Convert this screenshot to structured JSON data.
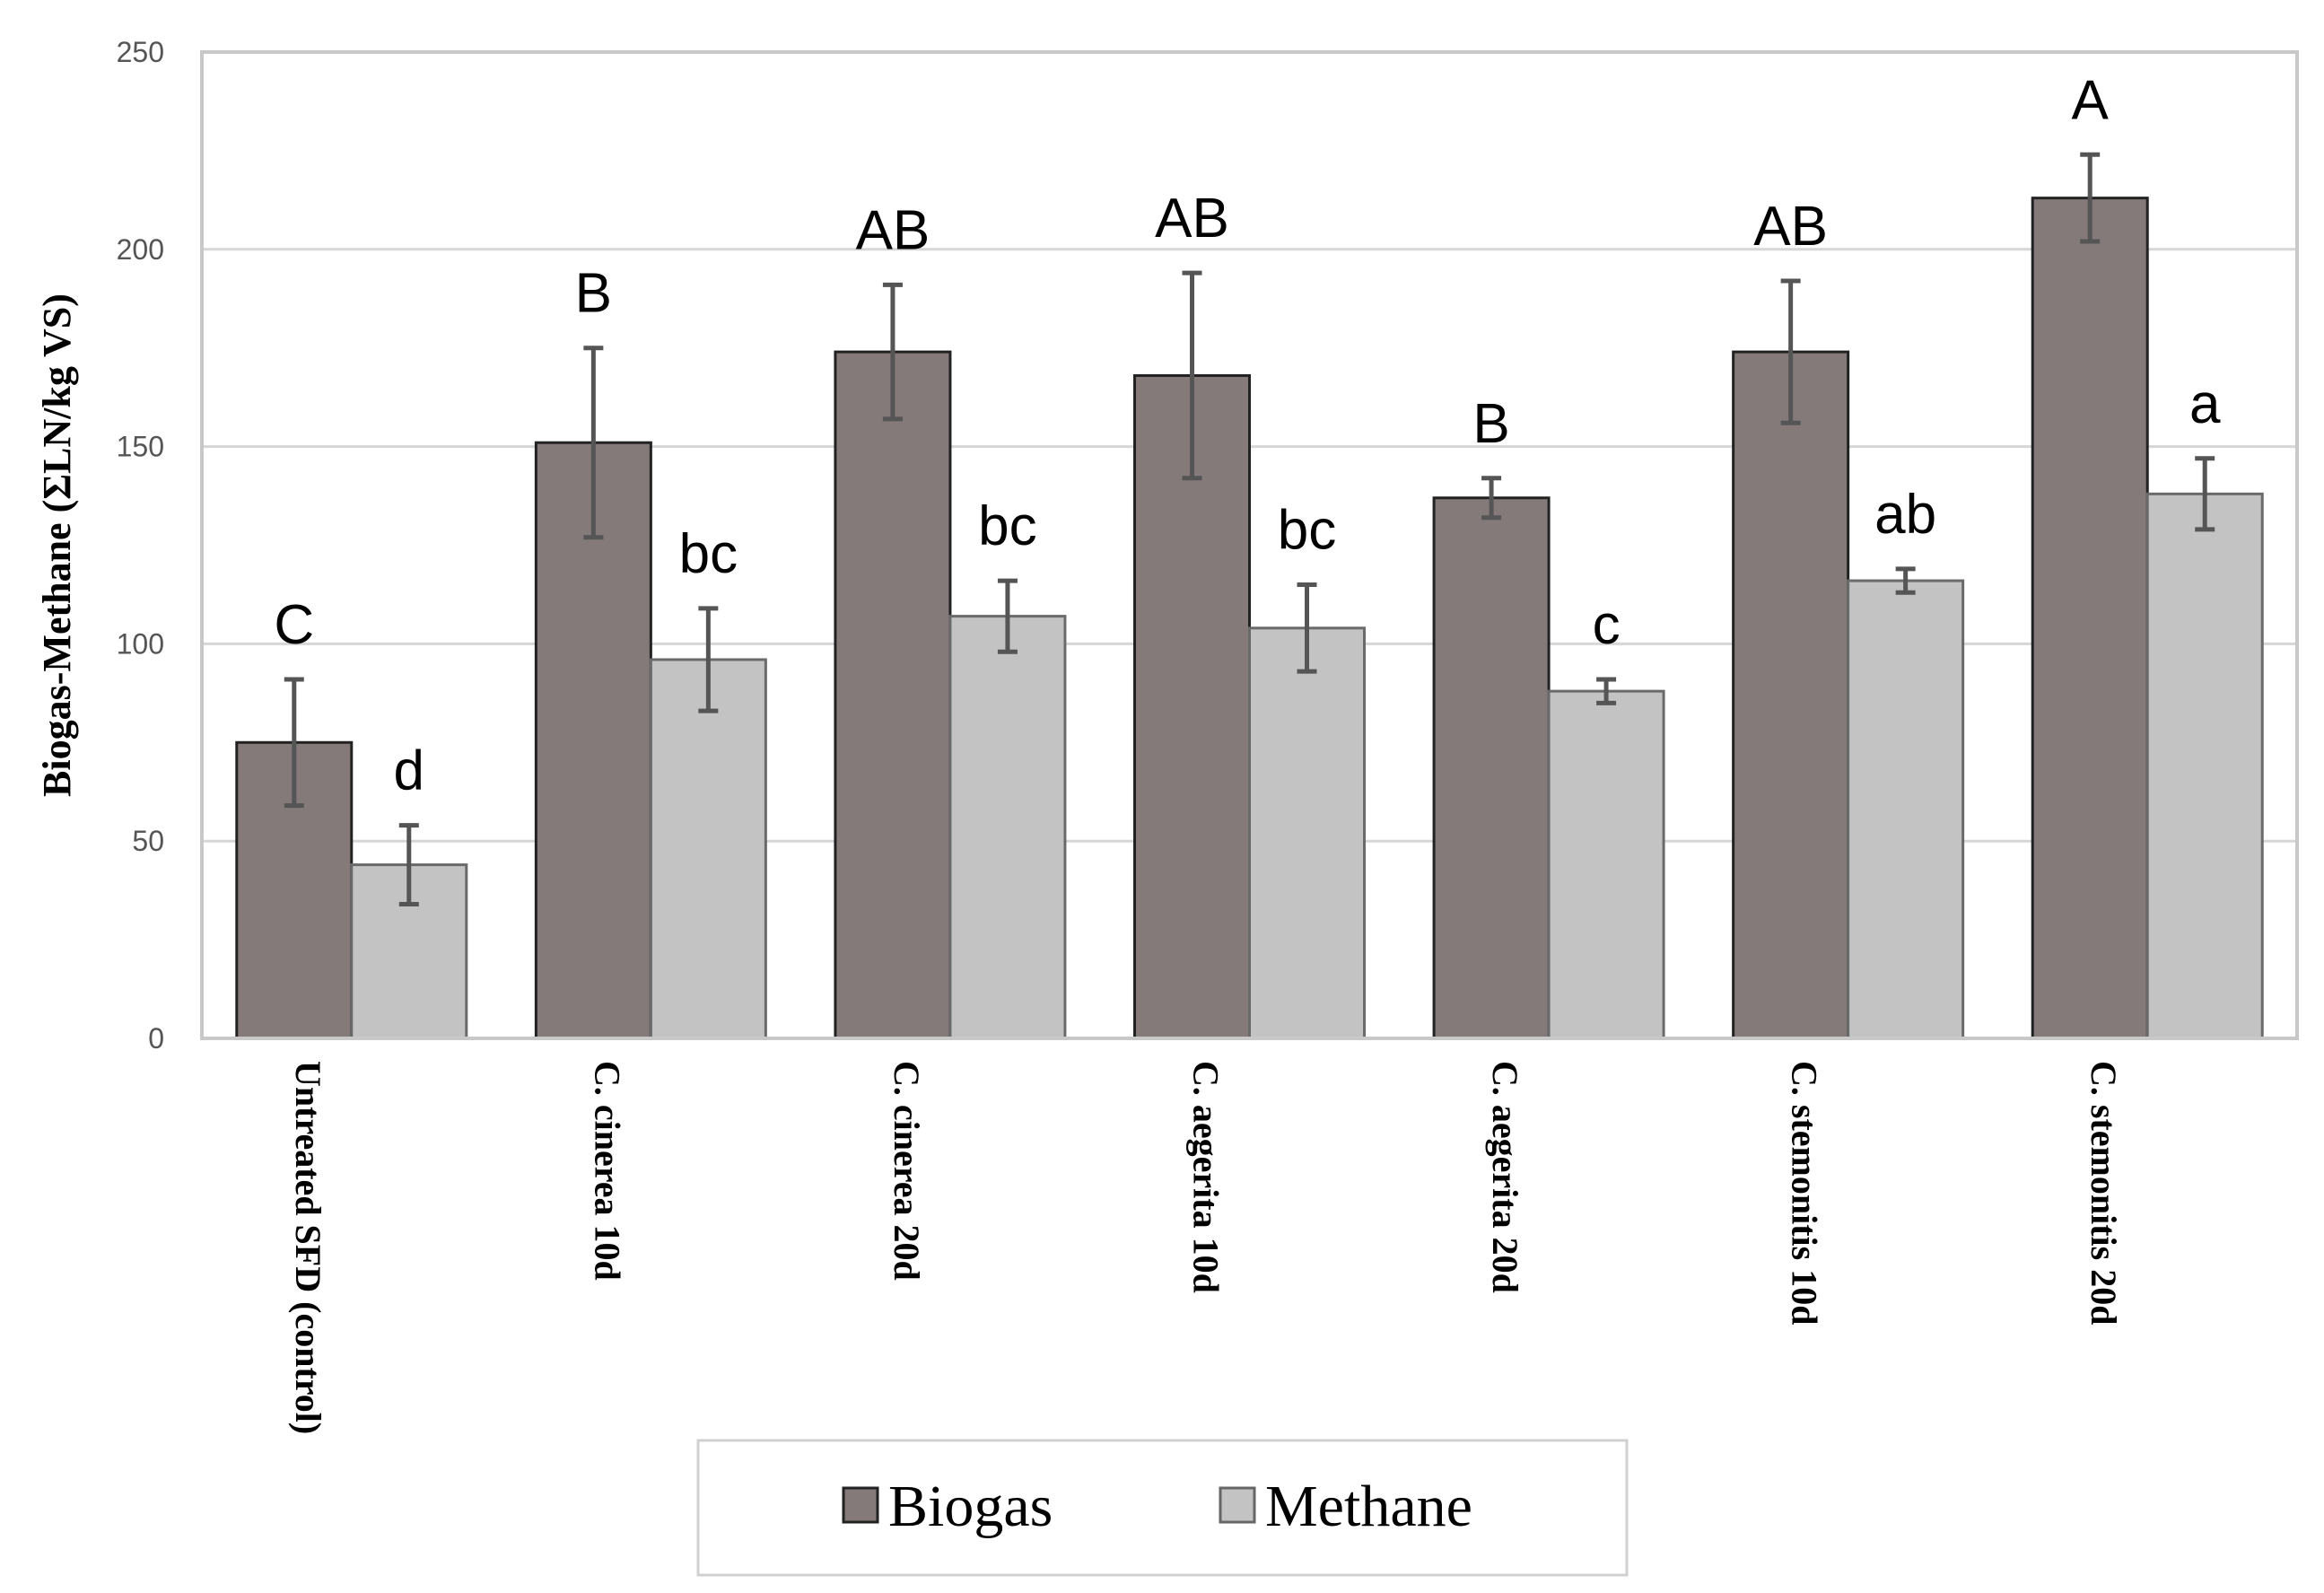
{
  "chart_data": {
    "type": "bar",
    "title": "",
    "xlabel": "",
    "ylabel": "Biogas-Methane (ΣLN/kg VS)",
    "ylim": [
      0,
      250
    ],
    "yticks": [
      0,
      50,
      100,
      150,
      200,
      250
    ],
    "grid": true,
    "legend_position": "bottom-center",
    "categories": [
      "Untreated SFD (control)",
      "C. cinerea 10d",
      "C. cinerea 20d",
      "C. aegerita 10d",
      "C. aegerita 20d",
      "C. stemonitis 10d",
      "C. stemonitis 20d"
    ],
    "series": [
      {
        "name": "Biogas",
        "color": "#847a7a",
        "values": [
          75,
          151,
          174,
          168,
          137,
          174,
          213
        ],
        "errors": [
          16,
          24,
          17,
          26,
          5,
          18,
          11
        ],
        "significance": [
          "C",
          "B",
          "AB",
          "AB",
          "B",
          "AB",
          "A"
        ]
      },
      {
        "name": "Methane",
        "color": "#c3c3c3",
        "values": [
          44,
          96,
          107,
          104,
          88,
          116,
          138
        ],
        "errors": [
          10,
          13,
          9,
          11,
          3,
          3,
          9
        ],
        "significance": [
          "d",
          "bc",
          "bc",
          "bc",
          "c",
          "ab",
          "a"
        ]
      }
    ]
  }
}
